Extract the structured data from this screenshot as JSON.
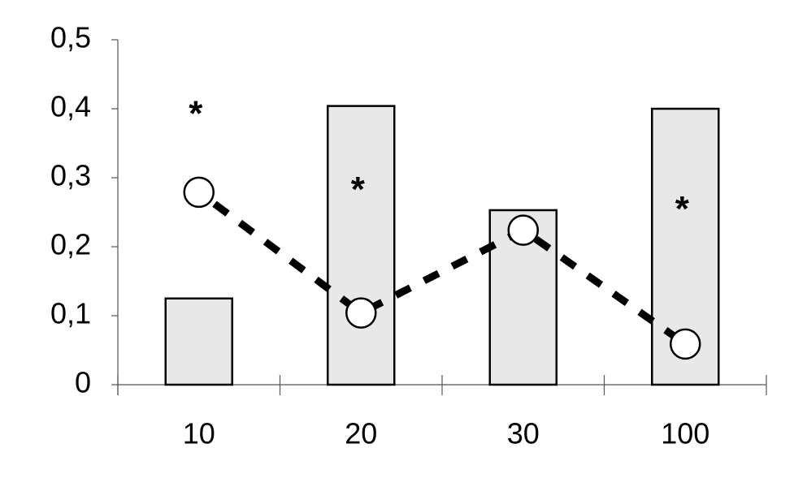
{
  "chart_data": {
    "type": "combo",
    "categories": [
      "10",
      "20",
      "30",
      "100"
    ],
    "series": [
      {
        "type": "bar",
        "color": "#e8e8e8",
        "values": [
          0.125,
          0.404,
          0.253,
          0.4
        ]
      },
      {
        "type": "line",
        "color": "#000000",
        "values": [
          0.279,
          0.104,
          0.224,
          0.059
        ]
      }
    ],
    "annotations": [
      {
        "text": "*",
        "category": "10",
        "y": 0.399
      },
      {
        "text": "*",
        "category": "20",
        "y": 0.289
      },
      {
        "text": "*",
        "category": "100",
        "y": 0.261
      }
    ],
    "ylim": [
      0,
      0.5
    ],
    "yticks": [
      0,
      {
        "value": 0.1,
        "label": "0,1"
      },
      {
        "value": 0.2,
        "label": "0,2"
      },
      {
        "value": 0.3,
        "label": "0,3"
      },
      {
        "value": 0.4,
        "label": "0,4"
      },
      {
        "value": 0.5,
        "label": "0,5"
      }
    ]
  }
}
